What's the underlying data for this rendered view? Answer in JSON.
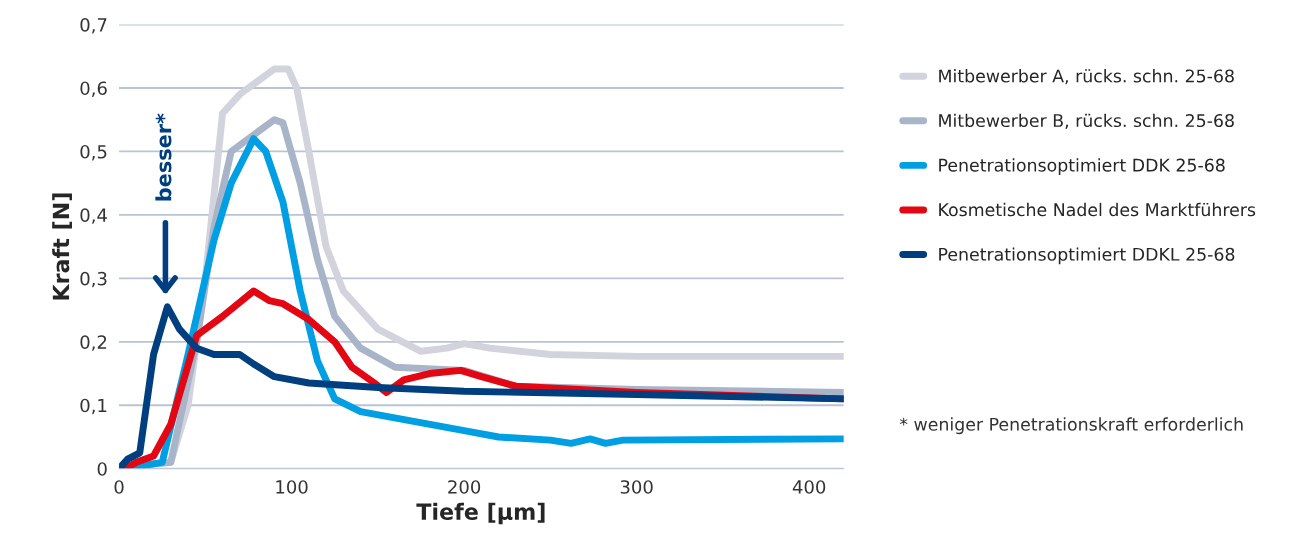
{
  "chart_data": {
    "type": "line",
    "xlabel": "Tiefe [µm]",
    "ylabel": "Kraft [N]",
    "xlim": [
      0,
      420
    ],
    "ylim": [
      0,
      0.7
    ],
    "xticks": [
      0,
      100,
      200,
      300,
      400
    ],
    "yticks": [
      0,
      {
        "value": 0.1,
        "label": "0,1"
      },
      {
        "value": 0.2,
        "label": "0,2"
      },
      {
        "value": 0.3,
        "label": "0,3"
      },
      {
        "value": 0.4,
        "label": "0,4"
      },
      {
        "value": 0.5,
        "label": "0,5"
      },
      {
        "value": 0.6,
        "label": "0,6"
      },
      {
        "value": 0.7,
        "label": "0,7"
      }
    ],
    "grid": "y",
    "legend": "right",
    "line_style": "solid",
    "series": [
      {
        "name": "Mitbewerber A, rücks. schn. 25-68",
        "color": "#d3d3de",
        "x": [
          0,
          10,
          30,
          40,
          50,
          60,
          70,
          80,
          90,
          98,
          103,
          110,
          120,
          130,
          150,
          175,
          190,
          200,
          215,
          250,
          300,
          420
        ],
        "values": [
          0,
          0.005,
          0.01,
          0.1,
          0.3,
          0.56,
          0.59,
          0.61,
          0.63,
          0.63,
          0.6,
          0.5,
          0.35,
          0.28,
          0.22,
          0.185,
          0.19,
          0.197,
          0.19,
          0.18,
          0.177,
          0.177
        ]
      },
      {
        "name": "Mitbewerber B, rücks. schn. 25-68",
        "color": "#a8b4c8",
        "x": [
          0,
          10,
          30,
          45,
          55,
          65,
          75,
          90,
          95,
          105,
          115,
          125,
          140,
          160,
          200,
          230,
          300,
          420
        ],
        "values": [
          0,
          0.005,
          0.01,
          0.2,
          0.38,
          0.5,
          0.52,
          0.55,
          0.545,
          0.45,
          0.33,
          0.24,
          0.19,
          0.16,
          0.155,
          0.13,
          0.125,
          0.12
        ]
      },
      {
        "name": "Penetrationsoptimiert DDK 25-68",
        "color": "#009fe3",
        "x": [
          3,
          25,
          40,
          55,
          65,
          78,
          85,
          95,
          105,
          115,
          125,
          140,
          170,
          200,
          220,
          250,
          262,
          273,
          282,
          292,
          420
        ],
        "values": [
          0,
          0.01,
          0.18,
          0.36,
          0.45,
          0.52,
          0.5,
          0.42,
          0.28,
          0.17,
          0.11,
          0.09,
          0.075,
          0.06,
          0.05,
          0.045,
          0.04,
          0.047,
          0.04,
          0.045,
          0.047
        ]
      },
      {
        "name": "Kosmetische Nadel des Marktführers",
        "color": "#e30613",
        "x": [
          3,
          10,
          20,
          30,
          45,
          60,
          78,
          87,
          95,
          110,
          125,
          135,
          148,
          155,
          165,
          180,
          198,
          210,
          230,
          300,
          420
        ],
        "values": [
          0,
          0.01,
          0.02,
          0.07,
          0.21,
          0.24,
          0.28,
          0.265,
          0.26,
          0.235,
          0.2,
          0.16,
          0.135,
          0.12,
          0.14,
          0.15,
          0.155,
          0.145,
          0.13,
          0.12,
          0.11
        ]
      },
      {
        "name": "Penetrationsoptimiert DDKL 25-68",
        "color": "#003f7f",
        "x": [
          0,
          5,
          12,
          20,
          28,
          35,
          45,
          55,
          70,
          78,
          90,
          110,
          150,
          200,
          300,
          420
        ],
        "values": [
          0,
          0.015,
          0.025,
          0.18,
          0.255,
          0.22,
          0.19,
          0.18,
          0.18,
          0.165,
          0.145,
          0.135,
          0.128,
          0.122,
          0.117,
          0.11
        ]
      }
    ],
    "annotations": [
      "besser*",
      "* weniger Penetrationskraft erforderlich"
    ]
  }
}
